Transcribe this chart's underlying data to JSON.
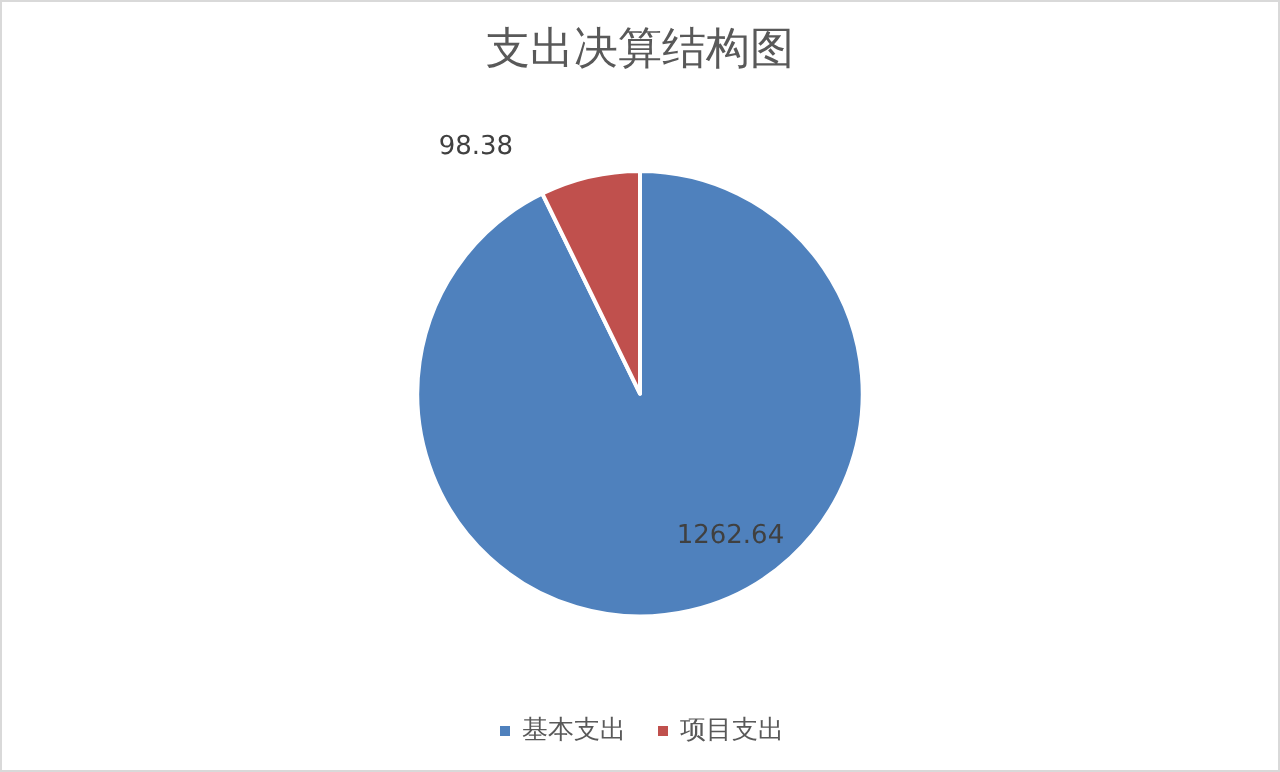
{
  "chart_data": {
    "type": "pie",
    "title": "支出决算结构图",
    "categories": [
      "基本支出",
      "项目支出"
    ],
    "values": [
      1262.64,
      98.38
    ],
    "colors": [
      "#4f81bd",
      "#c0504d"
    ],
    "data_labels": true,
    "legend": "bottom"
  }
}
